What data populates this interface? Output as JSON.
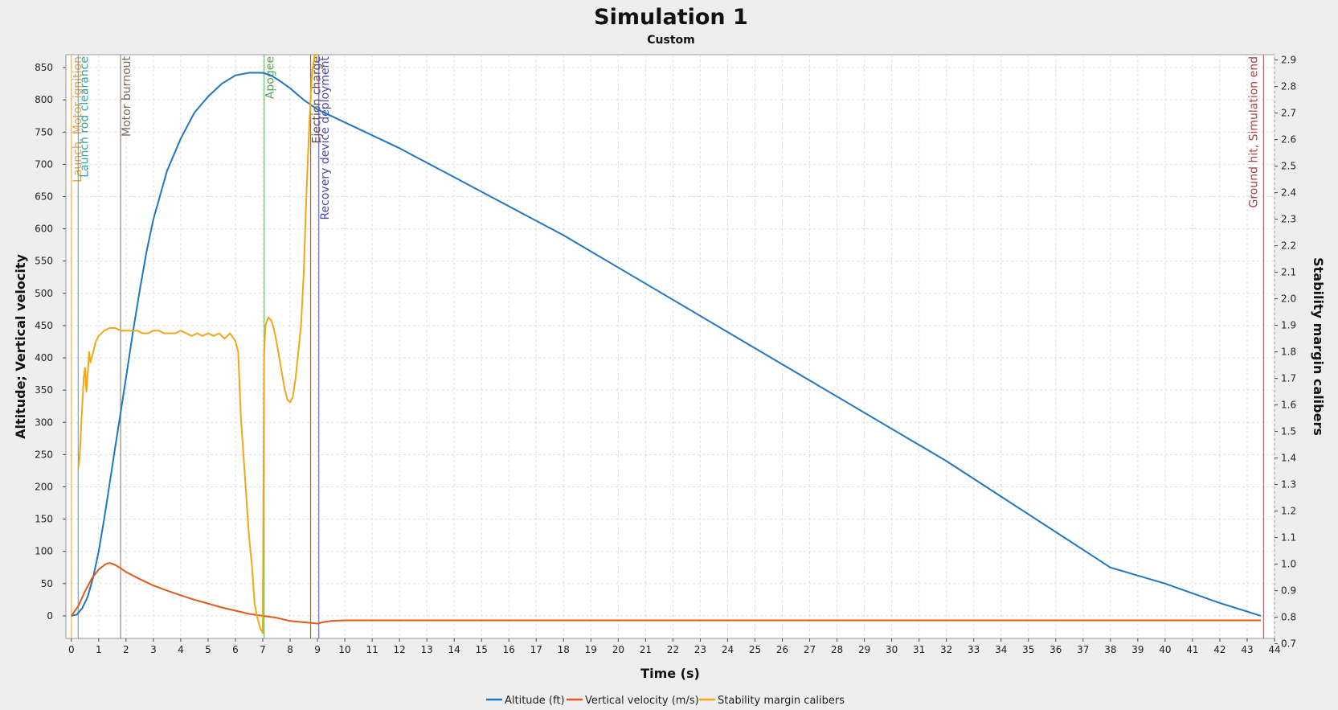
{
  "chart_data": {
    "type": "line",
    "title": "Simulation 1",
    "subtitle": "Custom",
    "xlabel": "Time (s)",
    "ylabel_left": "Altitude; Vertical velocity",
    "ylabel_right": "Stability margin calibers",
    "xlim": [
      -0.2,
      44
    ],
    "ylim_left": [
      -35,
      870
    ],
    "ylim_right": [
      0.72,
      2.92
    ],
    "x_ticks": [
      0,
      1,
      2,
      3,
      4,
      5,
      6,
      7,
      8,
      9,
      10,
      11,
      12,
      13,
      14,
      15,
      16,
      17,
      18,
      19,
      20,
      21,
      22,
      23,
      24,
      25,
      26,
      27,
      28,
      29,
      30,
      31,
      32,
      33,
      34,
      35,
      36,
      37,
      38,
      39,
      40,
      41,
      42,
      43,
      44
    ],
    "y_ticks_left": [
      0,
      50,
      100,
      150,
      200,
      250,
      300,
      350,
      400,
      450,
      500,
      550,
      600,
      650,
      700,
      750,
      800,
      850
    ],
    "y_ticks_right": [
      "0.7",
      "0.8",
      "0.9",
      "1.0",
      "1.1",
      "1.2",
      "1.3",
      "1.4",
      "1.5",
      "1.6",
      "1.7",
      "1.8",
      "1.9",
      "2.0",
      "2.1",
      "2.2",
      "2.3",
      "2.4",
      "2.5",
      "2.6",
      "2.7",
      "2.8",
      "2.9"
    ],
    "grid": true,
    "legend_position": "bottom-center",
    "series": [
      {
        "name": "Altitude (ft)",
        "axis": "left",
        "color": "#1f77c4",
        "x": [
          0,
          0.2,
          0.4,
          0.6,
          0.8,
          1.0,
          1.2,
          1.4,
          1.6,
          1.8,
          2.0,
          2.25,
          2.5,
          2.75,
          3.0,
          3.5,
          4.0,
          4.5,
          5.0,
          5.5,
          6.0,
          6.5,
          7.0,
          7.3,
          7.6,
          8.0,
          8.5,
          9.0,
          9.5,
          10,
          12,
          14,
          16,
          18,
          20,
          22,
          24,
          26,
          28,
          30,
          32,
          34,
          36,
          38,
          40,
          42,
          43.5
        ],
        "values": [
          0,
          2,
          12,
          30,
          60,
          100,
          150,
          205,
          260,
          315,
          370,
          440,
          505,
          565,
          615,
          690,
          740,
          780,
          805,
          825,
          838,
          842,
          842,
          838,
          830,
          818,
          800,
          785,
          775,
          765,
          725,
          680,
          635,
          590,
          540,
          490,
          440,
          390,
          340,
          290,
          240,
          185,
          130,
          75,
          50,
          20,
          0
        ]
      },
      {
        "name": "Vertical velocity (m/s)",
        "axis": "left",
        "color": "#e05a1a",
        "x": [
          0,
          0.25,
          0.5,
          0.75,
          1.0,
          1.25,
          1.4,
          1.6,
          1.8,
          2.0,
          2.5,
          3.0,
          3.5,
          4.0,
          4.5,
          5.0,
          5.5,
          6.0,
          6.5,
          7.0,
          7.5,
          8.0,
          8.5,
          9.0,
          9.2,
          9.5,
          10,
          15,
          20,
          25,
          30,
          35,
          40,
          43.5
        ],
        "values": [
          0,
          15,
          38,
          58,
          72,
          80,
          82,
          79,
          74,
          68,
          57,
          47,
          39,
          32,
          25,
          19,
          13,
          8,
          3,
          0,
          -3,
          -8,
          -10,
          -12,
          -10,
          -8,
          -7,
          -7,
          -7,
          -7,
          -7,
          -7,
          -7,
          -7
        ]
      },
      {
        "name": "Stability margin calibers",
        "axis": "right",
        "color": "#f0a818",
        "x": [
          0.25,
          0.3,
          0.35,
          0.4,
          0.45,
          0.5,
          0.55,
          0.6,
          0.65,
          0.7,
          0.8,
          0.9,
          1.0,
          1.2,
          1.4,
          1.6,
          1.8,
          2.0,
          2.2,
          2.4,
          2.6,
          2.8,
          3.0,
          3.2,
          3.4,
          3.6,
          3.8,
          4.0,
          4.2,
          4.4,
          4.6,
          4.8,
          5.0,
          5.2,
          5.4,
          5.6,
          5.8,
          6.0,
          6.1,
          6.2,
          6.3,
          6.4,
          6.5,
          6.6,
          6.7,
          6.8,
          6.9,
          7.0,
          7.02,
          7.05,
          7.1,
          7.2,
          7.3,
          7.4,
          7.5,
          7.6,
          7.7,
          7.8,
          7.9,
          8.0,
          8.1,
          8.2,
          8.3,
          8.4,
          8.5,
          8.6,
          8.7,
          8.8,
          8.9,
          9.0
        ],
        "values": [
          1.36,
          1.4,
          1.5,
          1.6,
          1.7,
          1.74,
          1.65,
          1.72,
          1.8,
          1.76,
          1.8,
          1.84,
          1.86,
          1.88,
          1.89,
          1.89,
          1.88,
          1.88,
          1.88,
          1.88,
          1.87,
          1.87,
          1.88,
          1.88,
          1.87,
          1.87,
          1.87,
          1.88,
          1.87,
          1.86,
          1.87,
          1.86,
          1.87,
          1.86,
          1.87,
          1.85,
          1.87,
          1.84,
          1.8,
          1.55,
          1.4,
          1.25,
          1.1,
          1.0,
          0.85,
          0.8,
          0.76,
          0.74,
          1.2,
          1.8,
          1.9,
          1.93,
          1.92,
          1.89,
          1.84,
          1.78,
          1.72,
          1.66,
          1.62,
          1.61,
          1.63,
          1.7,
          1.8,
          1.9,
          2.1,
          2.4,
          2.65,
          2.85,
          2.95,
          3.0
        ]
      }
    ],
    "events": [
      {
        "label": "Launch, Motor ignition",
        "x": 0.0,
        "color": "#e8a04a"
      },
      {
        "label": "Launch rod clearance",
        "x": 0.25,
        "color": "#3aa0a0"
      },
      {
        "label": "Motor burnout",
        "x": 1.8,
        "color": "#7a6a5a"
      },
      {
        "label": "Apogee",
        "x": 7.05,
        "color": "#50a850"
      },
      {
        "label": "Ejection charge",
        "x": 8.75,
        "color": "#6a4a30"
      },
      {
        "label": "Recovery device deployment",
        "x": 9.05,
        "color": "#4a4ab0"
      },
      {
        "label": "Ground hit, Simulation end",
        "x": 43.6,
        "color": "#b04040"
      }
    ]
  }
}
